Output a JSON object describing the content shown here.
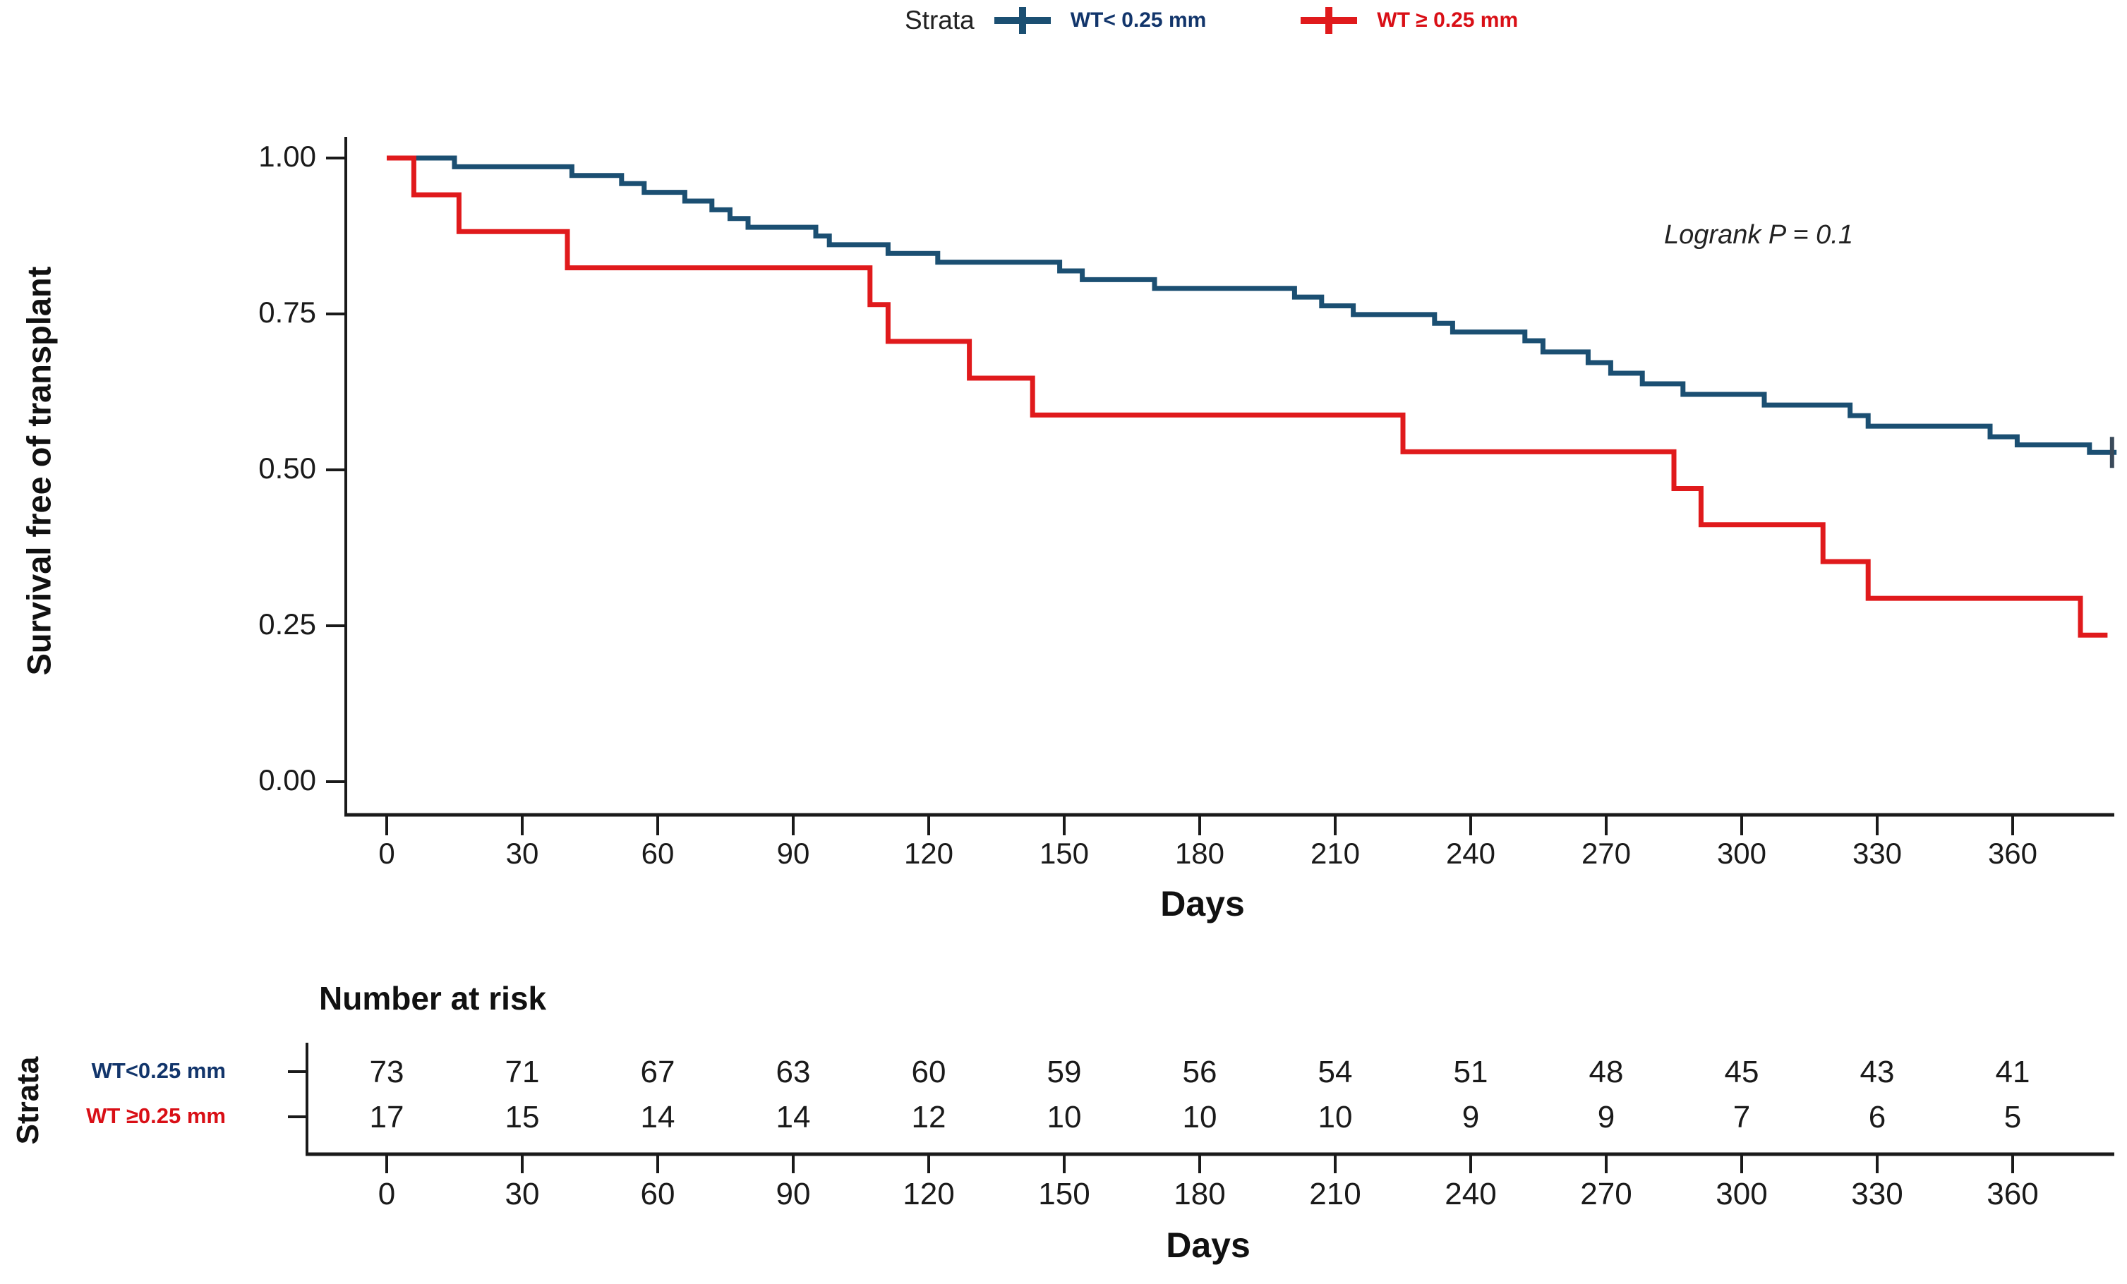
{
  "legend": {
    "title": "Strata",
    "items": [
      {
        "label": "WT< 0.25 mm",
        "color": "#1b4f72"
      },
      {
        "label": "WT ≥ 0.25 mm",
        "color": "#e01a1c"
      }
    ]
  },
  "annotation": "Logrank P = 0.1",
  "chart_data": {
    "type": "line",
    "subtype": "kaplan-meier-step",
    "title": "",
    "xlabel": "Days",
    "ylabel": "Survival free of transplant",
    "xlim": [
      0,
      383
    ],
    "ylim": [
      0.0,
      1.0
    ],
    "xticks": [
      0,
      30,
      60,
      90,
      120,
      150,
      180,
      210,
      240,
      270,
      300,
      330,
      360
    ],
    "yticks": [
      1.0,
      0.75,
      0.5,
      0.25,
      0.0
    ],
    "ytick_labels": [
      "1.00",
      "0.75",
      "0.50",
      "0.25",
      "0.00"
    ],
    "grid": "off",
    "legend_position": "top",
    "annotation": "Logrank P = 0.1",
    "series": [
      {
        "name": "WT< 0.25 mm",
        "color": "#1b4f72",
        "start": [
          0,
          1.0
        ],
        "end_day": 383,
        "censor_tick": [
          382,
          0.528
        ],
        "steps": [
          [
            15,
            0.986
          ],
          [
            41,
            0.972
          ],
          [
            52,
            0.959
          ],
          [
            57,
            0.945
          ],
          [
            66,
            0.931
          ],
          [
            72,
            0.917
          ],
          [
            76,
            0.903
          ],
          [
            80,
            0.889
          ],
          [
            95,
            0.875
          ],
          [
            98,
            0.861
          ],
          [
            111,
            0.847
          ],
          [
            122,
            0.833
          ],
          [
            149,
            0.819
          ],
          [
            154,
            0.805
          ],
          [
            170,
            0.791
          ],
          [
            201,
            0.777
          ],
          [
            207,
            0.763
          ],
          [
            214,
            0.749
          ],
          [
            232,
            0.735
          ],
          [
            236,
            0.721
          ],
          [
            252,
            0.707
          ],
          [
            256,
            0.689
          ],
          [
            266,
            0.672
          ],
          [
            271,
            0.655
          ],
          [
            278,
            0.638
          ],
          [
            287,
            0.621
          ],
          [
            305,
            0.604
          ],
          [
            324,
            0.587
          ],
          [
            328,
            0.57
          ],
          [
            355,
            0.553
          ],
          [
            361,
            0.54
          ],
          [
            377,
            0.528
          ]
        ]
      },
      {
        "name": "WT ≥ 0.25 mm",
        "color": "#e01a1c",
        "start": [
          0,
          1.0
        ],
        "end_day": 381,
        "censor_tick": null,
        "steps": [
          [
            6,
            0.941
          ],
          [
            16,
            0.882
          ],
          [
            40,
            0.824
          ],
          [
            107,
            0.765
          ],
          [
            111,
            0.706
          ],
          [
            129,
            0.647
          ],
          [
            143,
            0.588
          ],
          [
            225,
            0.529
          ],
          [
            285,
            0.47
          ],
          [
            291,
            0.412
          ],
          [
            318,
            0.353
          ],
          [
            328,
            0.294
          ],
          [
            375,
            0.235
          ]
        ]
      }
    ]
  },
  "risk_table": {
    "title": "Number at risk",
    "axis_label": "Strata",
    "xlabel": "Days",
    "ticks": [
      0,
      30,
      60,
      90,
      120,
      150,
      180,
      210,
      240,
      270,
      300,
      330,
      360
    ],
    "rows": [
      {
        "label": "WT<0.25 mm",
        "color": "#12356b",
        "values": [
          73,
          71,
          67,
          63,
          60,
          59,
          56,
          54,
          51,
          48,
          45,
          43,
          41
        ]
      },
      {
        "label": "WT ≥0.25 mm",
        "color": "#d90f16",
        "values": [
          17,
          15,
          14,
          14,
          12,
          10,
          10,
          10,
          9,
          9,
          7,
          6,
          5
        ]
      }
    ]
  }
}
